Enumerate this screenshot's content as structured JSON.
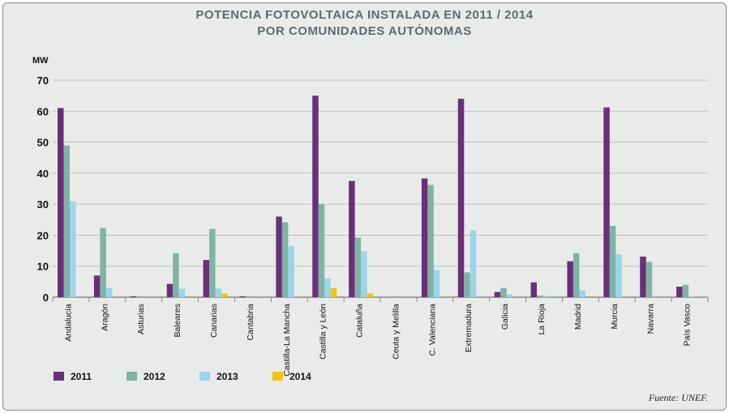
{
  "chart_data": {
    "type": "bar",
    "title": "POTENCIA FOTOVOLTAICA INSTALADA EN 2011 / 2014",
    "subtitle": "POR COMUNIDADES AUTÓNOMAS",
    "ylabel": "MW",
    "xlabel": "",
    "ylim": [
      0,
      70
    ],
    "yticks": [
      0,
      10,
      20,
      30,
      40,
      50,
      60,
      70
    ],
    "grid": true,
    "legend": "bottom-left",
    "categories": [
      "Andalucía",
      "Aragón",
      "Asturias",
      "Baleares",
      "Canarias",
      "Cantabria",
      "Castilla-La Mancha",
      "Castilla y León",
      "Cataluña",
      "Ceuta y Melilla",
      "C. Valenciana",
      "Extremadura",
      "Galicia",
      "La Rioja",
      "Madrid",
      "Murcia",
      "Navarra",
      "País Vasco"
    ],
    "series": [
      {
        "name": "2011",
        "color": "#6b2f78",
        "values": [
          61,
          7,
          0.3,
          4.3,
          12,
          0.3,
          26,
          65,
          37.5,
          0,
          38.3,
          64,
          1.7,
          4.8,
          11.6,
          61.2,
          13.1,
          3.4
        ]
      },
      {
        "name": "2012",
        "color": "#7fb3a6",
        "values": [
          49,
          22.3,
          0,
          14.2,
          22,
          0.3,
          24.2,
          30,
          19.2,
          0,
          36.2,
          8,
          3,
          0.5,
          14.2,
          23,
          11.4,
          4
        ]
      },
      {
        "name": "2013",
        "color": "#9ad5ea",
        "values": [
          31,
          3,
          0,
          2.7,
          2.8,
          0,
          16.5,
          6,
          14.8,
          0,
          8.8,
          21.5,
          0.9,
          0.5,
          2.2,
          13.8,
          0.5,
          0.3
        ]
      },
      {
        "name": "2014",
        "color": "#f0c21a",
        "values": [
          0,
          0,
          0,
          0,
          1.2,
          0,
          0,
          2.9,
          1.2,
          0,
          0,
          0,
          0,
          0,
          0,
          0,
          0,
          0
        ]
      }
    ],
    "source": "Fuente: UNEF."
  }
}
